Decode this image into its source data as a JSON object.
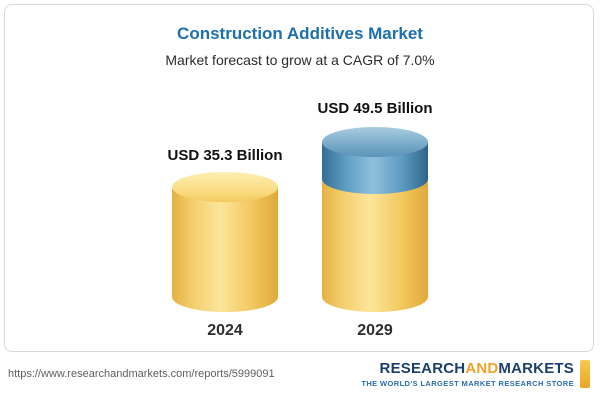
{
  "header": {
    "title": "Construction Additives Market",
    "subtitle": "Market forecast to grow at a CAGR of 7.0%"
  },
  "chart_data": {
    "type": "bar",
    "title": "Construction Additives Market",
    "subtitle": "Market forecast to grow at a CAGR of 7.0%",
    "categories": [
      "2024",
      "2029"
    ],
    "values": [
      35.3,
      49.5
    ],
    "unit": "USD Billion",
    "value_labels": [
      "USD 35.3 Billion",
      "USD 49.5 Billion"
    ],
    "cagr": "7.0%",
    "ylim": [
      0,
      55
    ],
    "grid": false,
    "legend": "none",
    "colors": {
      "bar_base": "#F5CB63",
      "bar_growth": "#4E86AE",
      "title_blue": "#1E6FAE"
    }
  },
  "footer": {
    "url": "https://www.researchandmarkets.com/reports/5999091",
    "logo": {
      "research": "RESEARCH",
      "and": "AND",
      "markets": "MARKETS",
      "tagline": "THE WORLD'S LARGEST MARKET RESEARCH STORE"
    }
  }
}
